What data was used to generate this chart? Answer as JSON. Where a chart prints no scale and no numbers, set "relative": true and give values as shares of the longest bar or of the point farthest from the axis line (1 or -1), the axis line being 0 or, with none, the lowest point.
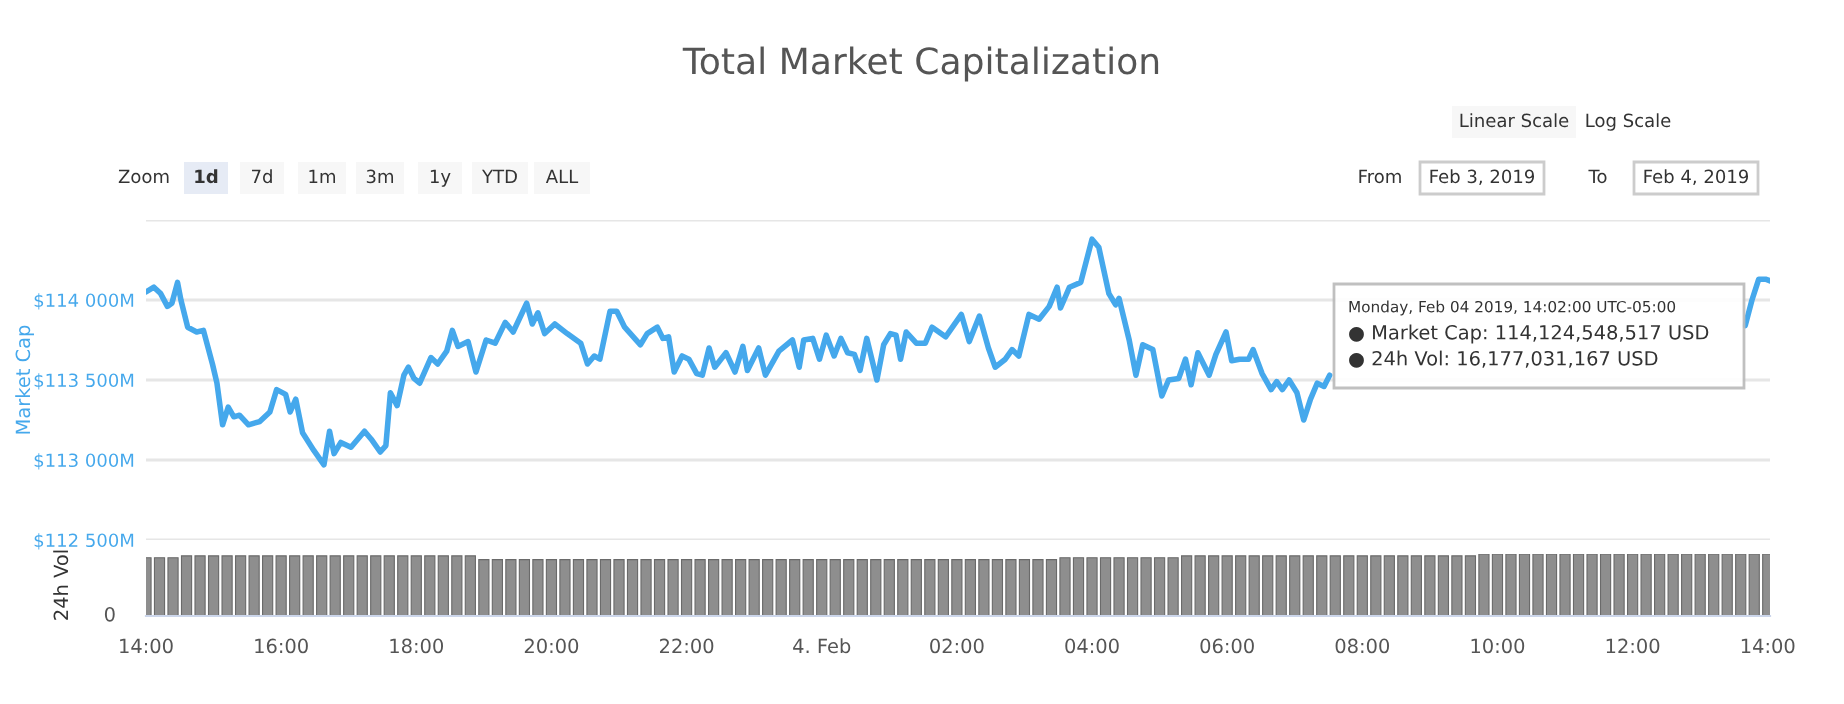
{
  "chart_data": [
    {
      "type": "line",
      "title": "Total Market Capitalization",
      "ylabel": "Market Cap",
      "x": [
        "2019-02-03T14:00",
        "2019-02-03T14:07",
        "2019-02-03T14:13",
        "2019-02-03T14:19",
        "2019-02-03T14:23",
        "2019-02-03T14:28",
        "2019-02-03T14:31",
        "2019-02-03T14:37",
        "2019-02-03T14:45",
        "2019-02-03T14:51",
        "2019-02-03T14:59",
        "2019-02-03T15:03",
        "2019-02-03T15:08",
        "2019-02-03T15:13",
        "2019-02-03T15:18",
        "2019-02-03T15:23",
        "2019-02-03T15:31",
        "2019-02-03T15:41",
        "2019-02-03T15:50",
        "2019-02-03T15:56",
        "2019-02-03T16:04",
        "2019-02-03T16:08",
        "2019-02-03T16:13",
        "2019-02-03T16:19",
        "2019-02-03T16:29",
        "2019-02-03T16:38",
        "2019-02-03T16:43",
        "2019-02-03T16:47",
        "2019-02-03T16:53",
        "2019-02-03T17:02",
        "2019-02-03T17:14",
        "2019-02-03T17:20",
        "2019-02-03T17:28",
        "2019-02-03T17:33",
        "2019-02-03T17:37",
        "2019-02-03T17:43",
        "2019-02-03T17:49",
        "2019-02-03T17:53",
        "2019-02-03T17:58",
        "2019-02-03T18:03",
        "2019-02-03T18:13",
        "2019-02-03T18:19",
        "2019-02-03T18:27",
        "2019-02-03T18:32",
        "2019-02-03T18:37",
        "2019-02-03T18:46",
        "2019-02-03T18:53",
        "2019-02-03T19:02",
        "2019-02-03T19:10",
        "2019-02-03T19:19",
        "2019-02-03T19:26",
        "2019-02-03T19:38",
        "2019-02-03T19:43",
        "2019-02-03T19:48",
        "2019-02-03T19:54",
        "2019-02-03T20:03",
        "2019-02-03T20:14",
        "2019-02-03T20:26",
        "2019-02-03T20:32",
        "2019-02-03T20:38",
        "2019-02-03T20:43",
        "2019-02-03T20:52",
        "2019-02-03T20:58",
        "2019-02-03T21:05",
        "2019-02-03T21:19",
        "2019-02-03T21:25",
        "2019-02-03T21:34",
        "2019-02-03T21:39",
        "2019-02-03T21:44",
        "2019-02-03T21:49",
        "2019-02-03T21:56",
        "2019-02-03T22:02",
        "2019-02-03T22:09",
        "2019-02-03T22:14",
        "2019-02-03T22:20",
        "2019-02-03T22:25",
        "2019-02-03T22:35",
        "2019-02-03T22:43",
        "2019-02-03T22:50",
        "2019-02-03T22:54",
        "2019-02-03T23:04",
        "2019-02-03T23:10",
        "2019-02-03T23:22",
        "2019-02-03T23:34",
        "2019-02-03T23:40",
        "2019-02-03T23:44",
        "2019-02-03T23:52",
        "2019-02-03T23:58",
        "2019-02-04T00:04",
        "2019-02-04T00:11",
        "2019-02-04T00:17",
        "2019-02-04T00:23",
        "2019-02-04T00:29",
        "2019-02-04T00:34",
        "2019-02-04T00:40",
        "2019-02-04T00:49",
        "2019-02-04T00:55",
        "2019-02-04T01:01",
        "2019-02-04T01:06",
        "2019-02-04T01:10",
        "2019-02-04T01:15",
        "2019-02-04T01:24",
        "2019-02-04T01:32",
        "2019-02-04T01:38",
        "2019-02-04T01:50",
        "2019-02-04T02:04",
        "2019-02-04T02:11",
        "2019-02-04T02:20",
        "2019-02-04T02:28",
        "2019-02-04T02:34",
        "2019-02-04T02:43",
        "2019-02-04T02:49",
        "2019-02-04T02:55",
        "2019-02-04T03:04",
        "2019-02-04T03:13",
        "2019-02-04T03:22",
        "2019-02-04T03:29",
        "2019-02-04T03:32",
        "2019-02-04T03:40",
        "2019-02-04T03:50",
        "2019-02-04T04:00",
        "2019-02-04T04:06",
        "2019-02-04T04:15",
        "2019-02-04T04:21",
        "2019-02-04T04:24",
        "2019-02-04T04:33",
        "2019-02-04T04:39",
        "2019-02-04T04:45",
        "2019-02-04T04:54",
        "2019-02-04T05:02",
        "2019-02-04T05:08",
        "2019-02-04T05:17",
        "2019-02-04T05:23",
        "2019-02-04T05:28",
        "2019-02-04T05:34",
        "2019-02-04T05:44",
        "2019-02-04T05:50",
        "2019-02-04T05:59",
        "2019-02-04T06:04",
        "2019-02-04T06:11",
        "2019-02-04T06:19",
        "2019-02-04T06:23",
        "2019-02-04T06:31",
        "2019-02-04T06:39",
        "2019-02-04T06:44",
        "2019-02-04T06:49",
        "2019-02-04T06:55",
        "2019-02-04T07:02",
        "2019-02-04T07:08",
        "2019-02-04T07:14",
        "2019-02-04T07:20",
        "2019-02-04T07:26",
        "2019-02-04T07:31",
        "2019-02-04T11:00",
        "2019-02-04T13:40",
        "2019-02-04T13:46",
        "2019-02-04T13:52",
        "2019-02-04T13:58",
        "2019-02-04T14:02"
      ],
      "series": [
        {
          "color": "#45a8ec",
          "values": [
            114050,
            114080,
            114040,
            113960,
            113980,
            114110,
            114000,
            113830,
            113800,
            113810,
            113600,
            113480,
            113220,
            113330,
            113270,
            113280,
            113220,
            113240,
            113300,
            113440,
            113410,
            113300,
            113380,
            113170,
            113060,
            112970,
            113180,
            113040,
            113110,
            113080,
            113180,
            113130,
            113050,
            113090,
            113420,
            113340,
            113530,
            113580,
            113510,
            113480,
            113640,
            113600,
            113680,
            113810,
            113710,
            113740,
            113550,
            113750,
            113730,
            113860,
            113800,
            113980,
            113850,
            113920,
            113790,
            113850,
            113790,
            113730,
            113600,
            113650,
            113630,
            113930,
            113930,
            113830,
            113720,
            113790,
            113830,
            113760,
            113770,
            113550,
            113650,
            113630,
            113540,
            113530,
            113700,
            113580,
            113670,
            113550,
            113710,
            113560,
            113700,
            113530,
            113680,
            113750,
            113580,
            113750,
            113760,
            113630,
            113780,
            113650,
            113760,
            113670,
            113660,
            113560,
            113760,
            113500,
            113720,
            113790,
            113780,
            113630,
            113800,
            113730,
            113730,
            113830,
            113770,
            113910,
            113740,
            113900,
            113700,
            113580,
            113630,
            113690,
            113650,
            113910,
            113880,
            113960,
            114080,
            113950,
            114080,
            114110,
            114380,
            114330,
            114040,
            113970,
            114010,
            113750,
            113530,
            113720,
            113690,
            113400,
            113500,
            113510,
            113630,
            113470,
            113670,
            113530,
            113660,
            113800,
            113620,
            113630,
            113630,
            113690,
            113540,
            113440,
            113490,
            113440,
            113500,
            113420,
            113250,
            113380,
            113480,
            113460,
            113530,
            null,
            113840,
            114000,
            114130,
            114130,
            114120
          ]
        }
      ],
      "xlim": [
        "2019-02-03T14:00",
        "2019-02-04T14:02"
      ],
      "ylim": [
        112500,
        114500
      ],
      "yticks": [
        {
          "value": 112500,
          "label": "$112 500M"
        },
        {
          "value": 113000,
          "label": "$113 000M"
        },
        {
          "value": 113500,
          "label": "$113 500M"
        },
        {
          "value": 114000,
          "label": "$114 000M"
        },
        {
          "value": 114500,
          "label": null
        }
      ],
      "grid": "y",
      "tick_labels": "y",
      "line_style": "solid",
      "annotations": [
        "Linear Scale",
        "Log Scale",
        "Zoom",
        "1d",
        "7d",
        "1m",
        "3m",
        "1y",
        "YTD",
        "ALL",
        "From",
        "Feb 3, 2019",
        "To",
        "Feb 4, 2019",
        "Monday, Feb 04 2019, 14:02:00 UTC-05:00",
        "● Market Cap: 114,124,548,517 USD",
        "● 24h Vol: 16,177,031,167 USD"
      ]
    },
    {
      "type": "bar",
      "ylabel": "24h Vol",
      "relative": true,
      "annotations": [
        "0"
      ],
      "x": [
        "2019-02-03T14:00",
        "2019-02-03T14:12",
        "2019-02-03T14:24",
        "2019-02-03T14:36",
        "2019-02-03T14:48",
        "2019-02-03T15:00",
        "2019-02-03T15:12",
        "2019-02-03T15:24",
        "2019-02-03T15:36",
        "2019-02-03T15:48",
        "2019-02-03T16:00",
        "2019-02-03T16:12",
        "2019-02-03T16:24",
        "2019-02-03T16:36",
        "2019-02-03T16:48",
        "2019-02-03T17:00",
        "2019-02-03T17:12",
        "2019-02-03T17:24",
        "2019-02-03T17:36",
        "2019-02-03T17:48",
        "2019-02-03T18:00",
        "2019-02-03T18:12",
        "2019-02-03T18:24",
        "2019-02-03T18:36",
        "2019-02-03T18:48",
        "2019-02-03T19:00",
        "2019-02-03T19:12",
        "2019-02-03T19:24",
        "2019-02-03T19:36",
        "2019-02-03T19:48",
        "2019-02-03T20:00",
        "2019-02-03T20:12",
        "2019-02-03T20:24",
        "2019-02-03T20:36",
        "2019-02-03T20:48",
        "2019-02-03T21:00",
        "2019-02-03T21:12",
        "2019-02-03T21:24",
        "2019-02-03T21:36",
        "2019-02-03T21:48",
        "2019-02-03T22:00",
        "2019-02-03T22:12",
        "2019-02-03T22:24",
        "2019-02-03T22:36",
        "2019-02-03T22:48",
        "2019-02-03T23:00",
        "2019-02-03T23:12",
        "2019-02-03T23:24",
        "2019-02-03T23:36",
        "2019-02-03T23:48",
        "2019-02-04T00:00",
        "2019-02-04T00:12",
        "2019-02-04T00:24",
        "2019-02-04T00:36",
        "2019-02-04T00:48",
        "2019-02-04T01:00",
        "2019-02-04T01:12",
        "2019-02-04T01:24",
        "2019-02-04T01:36",
        "2019-02-04T01:48",
        "2019-02-04T02:00",
        "2019-02-04T02:12",
        "2019-02-04T02:24",
        "2019-02-04T02:36",
        "2019-02-04T02:48",
        "2019-02-04T03:00",
        "2019-02-04T03:12",
        "2019-02-04T03:24",
        "2019-02-04T03:36",
        "2019-02-04T03:48",
        "2019-02-04T04:00",
        "2019-02-04T04:12",
        "2019-02-04T04:24",
        "2019-02-04T04:36",
        "2019-02-04T04:48",
        "2019-02-04T05:00",
        "2019-02-04T05:12",
        "2019-02-04T05:24",
        "2019-02-04T05:36",
        "2019-02-04T05:48",
        "2019-02-04T06:00",
        "2019-02-04T06:12",
        "2019-02-04T06:24",
        "2019-02-04T06:36",
        "2019-02-04T06:48",
        "2019-02-04T07:00",
        "2019-02-04T07:12",
        "2019-02-04T07:24",
        "2019-02-04T07:36",
        "2019-02-04T07:48",
        "2019-02-04T08:00",
        "2019-02-04T08:12",
        "2019-02-04T08:24",
        "2019-02-04T08:36",
        "2019-02-04T08:48",
        "2019-02-04T09:00",
        "2019-02-04T09:12",
        "2019-02-04T09:24",
        "2019-02-04T09:36",
        "2019-02-04T09:48",
        "2019-02-04T10:00",
        "2019-02-04T10:12",
        "2019-02-04T10:24",
        "2019-02-04T10:36",
        "2019-02-04T10:48",
        "2019-02-04T11:00",
        "2019-02-04T11:12",
        "2019-02-04T11:24",
        "2019-02-04T11:36",
        "2019-02-04T11:48",
        "2019-02-04T12:00",
        "2019-02-04T12:12",
        "2019-02-04T12:24",
        "2019-02-04T12:36",
        "2019-02-04T12:48",
        "2019-02-04T13:00",
        "2019-02-04T13:12",
        "2019-02-04T13:24",
        "2019-02-04T13:36",
        "2019-02-04T13:48",
        "2019-02-04T14:00"
      ],
      "series": [
        {
          "color": "#8e8e8e",
          "values": [
            0.94,
            0.94,
            0.94,
            0.97,
            0.97,
            0.97,
            0.97,
            0.97,
            0.97,
            0.97,
            0.97,
            0.97,
            0.97,
            0.97,
            0.97,
            0.97,
            0.97,
            0.97,
            0.97,
            0.97,
            0.97,
            0.97,
            0.97,
            0.97,
            0.97,
            0.91,
            0.91,
            0.91,
            0.91,
            0.91,
            0.91,
            0.91,
            0.91,
            0.91,
            0.91,
            0.91,
            0.91,
            0.91,
            0.91,
            0.91,
            0.91,
            0.91,
            0.91,
            0.91,
            0.91,
            0.91,
            0.91,
            0.91,
            0.91,
            0.91,
            0.91,
            0.91,
            0.91,
            0.91,
            0.91,
            0.91,
            0.91,
            0.91,
            0.91,
            0.91,
            0.91,
            0.91,
            0.91,
            0.91,
            0.91,
            0.91,
            0.91,
            0.91,
            0.94,
            0.94,
            0.94,
            0.94,
            0.94,
            0.94,
            0.94,
            0.94,
            0.94,
            0.97,
            0.97,
            0.97,
            0.97,
            0.97,
            0.97,
            0.97,
            0.97,
            0.97,
            0.97,
            0.97,
            0.97,
            0.97,
            0.97,
            0.97,
            0.97,
            0.97,
            0.97,
            0.97,
            0.97,
            0.97,
            0.97,
            1,
            1,
            1,
            1,
            1,
            1,
            1,
            1,
            1,
            1,
            1,
            1,
            1,
            1,
            1,
            1,
            1,
            1,
            1,
            1,
            1,
            1
          ]
        }
      ],
      "xlim": [
        "2019-02-03T14:00",
        "2019-02-04T14:02"
      ],
      "xticks": [
        {
          "value": "2019-02-03T14:00",
          "label": "14:00"
        },
        {
          "value": "2019-02-03T16:00",
          "label": "16:00"
        },
        {
          "value": "2019-02-03T18:00",
          "label": "18:00"
        },
        {
          "value": "2019-02-03T20:00",
          "label": "20:00"
        },
        {
          "value": "2019-02-03T22:00",
          "label": "22:00"
        },
        {
          "value": "2019-02-04T00:00",
          "label": "4. Feb"
        },
        {
          "value": "2019-02-04T02:00",
          "label": "02:00"
        },
        {
          "value": "2019-02-04T04:00",
          "label": "04:00"
        },
        {
          "value": "2019-02-04T06:00",
          "label": "06:00"
        },
        {
          "value": "2019-02-04T08:00",
          "label": "08:00"
        },
        {
          "value": "2019-02-04T10:00",
          "label": "10:00"
        },
        {
          "value": "2019-02-04T12:00",
          "label": "12:00"
        },
        {
          "value": "2019-02-04T14:00",
          "label": "14:00"
        }
      ],
      "tick_labels": "x"
    }
  ]
}
